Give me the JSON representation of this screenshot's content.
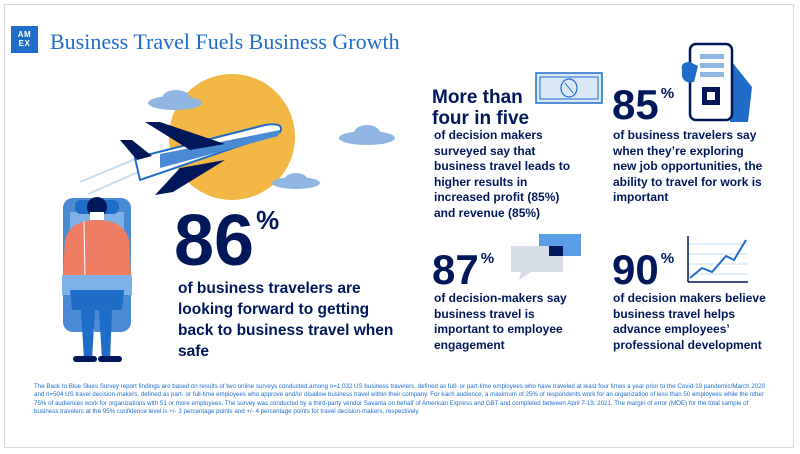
{
  "brand": {
    "logo_text_line1": "AM",
    "logo_text_line2": "EX",
    "accent": "#1f6dc8",
    "navy": "#00175a",
    "sun": "#f2b744",
    "coral": "#ee7c62"
  },
  "title": "Business Travel Fuels Business Growth",
  "stat_86": {
    "number": "86",
    "percent": "%",
    "text": "of business travelers are looking forward to getting back to business travel when safe"
  },
  "stat_five": {
    "headline_1": "More than",
    "headline_2": "four in five",
    "text": "of decision makers surveyed say that business travel leads to higher results in increased profit (85%) and revenue (85%)"
  },
  "stat_85": {
    "number": "85",
    "percent": "%",
    "text": "of business travelers say when they’re exploring new job opportunities, the ability to travel for work is important"
  },
  "stat_87": {
    "number": "87",
    "percent": "%",
    "text": "of decision-makers say business travel is important to employee engagement"
  },
  "stat_90": {
    "number": "90",
    "percent": "%",
    "text": "of decision makers believe business travel helps advance employees’ professional development"
  },
  "footnote": "The Back to Blue Skies Survey report findings are based on results of two online surveys conducted among n=1,032 US business travelers, defined as full- or part-time employees who have traveled at least four times a year prior to the Covid-19 pandemic/March 2020 and n=504 US travel decision-makers, defined as part- or full-time employees who approve and/or disallow business travel within their company. For each audience, a maximum of 25% of respondents work for an organization of less than 50 employees while the other 75% of audiences work for organizations with 51 or more employees. The survey was conducted by a third-party vendor Savanta on behalf of American Express and GBT and completed between April 7-19, 2021. The margin of error (MOE) for the total sample of business travelers at the 95% confidence level is +/- 3 percentage points and +/- 4 percentage points for travel decision-makers, respectively."
}
